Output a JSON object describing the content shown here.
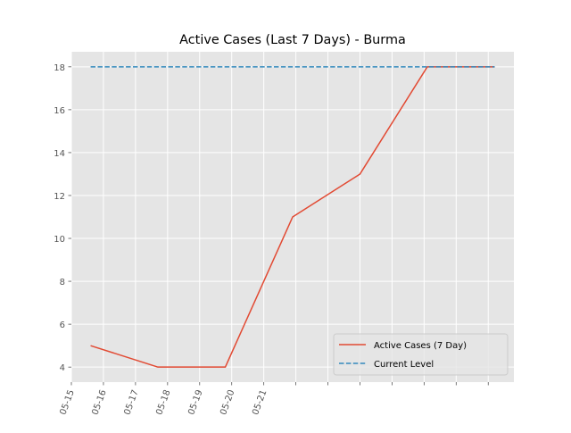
{
  "chart_data": {
    "type": "line",
    "title": "Active Cases (Last 7 Days) - Burma",
    "xlabel": "",
    "ylabel": "",
    "x": [
      "05-15",
      "05-16",
      "05-17",
      "05-18",
      "05-19",
      "05-20",
      "05-21"
    ],
    "x_tick_labels": [
      "05-15",
      "05-16",
      "05-17",
      "05-18",
      "05-19",
      "05-20",
      "05-21"
    ],
    "y_ticks": [
      4,
      6,
      8,
      10,
      12,
      14,
      16,
      18
    ],
    "ylim": [
      3.3,
      18.7
    ],
    "grid": true,
    "legend_position": "lower-right",
    "series": [
      {
        "name": "Active Cases (7 Day)",
        "x": [
          0.6,
          2.7,
          4.8,
          6.9,
          9.0,
          11.1,
          13.2
        ],
        "values": [
          5,
          4,
          4,
          11,
          13,
          18,
          18
        ],
        "style": "solid",
        "color": "#E24A33"
      },
      {
        "name": "Current Level",
        "x": [
          0.6,
          13.2
        ],
        "values": [
          18,
          18
        ],
        "style": "dashed",
        "color": "#348ABD"
      }
    ],
    "colors": {
      "background": "#E5E5E5",
      "grid": "#FFFFFF"
    }
  }
}
